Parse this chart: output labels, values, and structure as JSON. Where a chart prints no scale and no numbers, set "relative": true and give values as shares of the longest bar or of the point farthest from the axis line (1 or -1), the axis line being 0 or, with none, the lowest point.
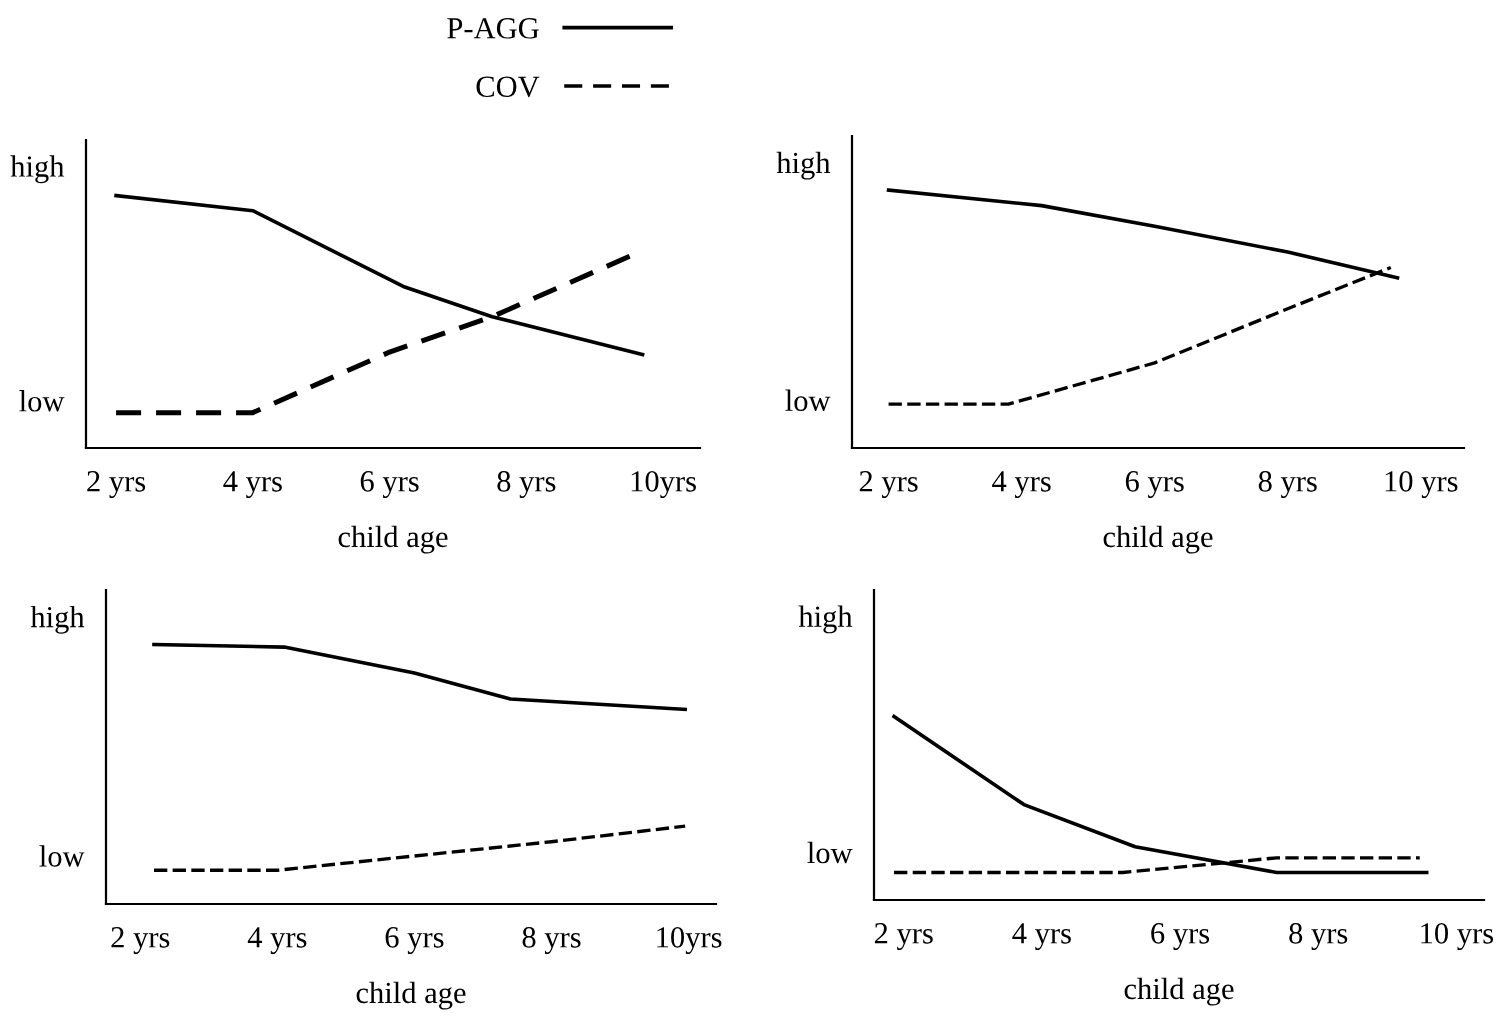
{
  "chart_data": [
    {
      "type": "line",
      "relative": true,
      "xlabel": "child age",
      "annotations": [
        "high",
        "low"
      ],
      "legend": "top",
      "grid": false,
      "marker": "none",
      "xlim": [
        1.56,
        10.54
      ],
      "xticks": [
        {
          "value": 2,
          "label": "2 yrs"
        },
        {
          "value": 4,
          "label": "4 yrs"
        },
        {
          "value": 6,
          "label": "6 yrs"
        },
        {
          "value": 8,
          "label": "8 yrs"
        },
        {
          "value": 10,
          "label": "10yrs"
        }
      ],
      "series": [
        {
          "name": "P-AGG",
          "color": "#000000",
          "line_style": "solid",
          "x": [
            2,
            4,
            6.2,
            7.5,
            9.7
          ],
          "values": [
            1,
            0.94,
            0.64,
            0.52,
            0.37
          ]
        },
        {
          "name": "COV",
          "color": "#000000",
          "line_style": "dashed",
          "x": [
            2,
            4,
            6,
            7.5,
            9.6
          ],
          "values": [
            0.14,
            0.14,
            0.38,
            0.52,
            0.77
          ]
        }
      ]
    },
    {
      "type": "line",
      "relative": true,
      "xlabel": "child age",
      "annotations": [
        "high",
        "low"
      ],
      "grid": false,
      "marker": "none",
      "xlim": [
        1.45,
        10.65
      ],
      "xticks": [
        {
          "value": 2,
          "label": "2 yrs"
        },
        {
          "value": 4,
          "label": "4 yrs"
        },
        {
          "value": 6,
          "label": "6 yrs"
        },
        {
          "value": 8,
          "label": "8 yrs"
        },
        {
          "value": 10,
          "label": "10 yrs"
        }
      ],
      "series": [
        {
          "color": "#000000",
          "line_style": "solid",
          "x": [
            2,
            4.3,
            6,
            8,
            9.65
          ],
          "values": [
            1,
            0.94,
            0.86,
            0.76,
            0.66
          ]
        },
        {
          "color": "#000000",
          "line_style": "dashed",
          "x": [
            2,
            3.8,
            6,
            8,
            9.55
          ],
          "values": [
            0.17,
            0.17,
            0.33,
            0.54,
            0.7
          ]
        }
      ]
    },
    {
      "type": "line",
      "relative": true,
      "xlabel": "child age",
      "annotations": [
        "high",
        "low"
      ],
      "grid": false,
      "marker": "none",
      "xlim": [
        1.5,
        10.4
      ],
      "xticks": [
        {
          "value": 2,
          "label": "2 yrs"
        },
        {
          "value": 4,
          "label": "4 yrs"
        },
        {
          "value": 6,
          "label": "6 yrs"
        },
        {
          "value": 8,
          "label": "8 yrs"
        },
        {
          "value": 10,
          "label": "10yrs"
        }
      ],
      "series": [
        {
          "color": "#000000",
          "line_style": "solid",
          "x": [
            2.2,
            4.1,
            6,
            7.4,
            9.95
          ],
          "values": [
            1,
            0.99,
            0.89,
            0.79,
            0.75
          ]
        },
        {
          "color": "#000000",
          "line_style": "dashed",
          "x": [
            2.2,
            4,
            8,
            9.95
          ],
          "values": [
            0.13,
            0.13,
            0.24,
            0.3
          ]
        }
      ]
    },
    {
      "type": "line",
      "relative": true,
      "xlabel": "child age",
      "annotations": [
        "high",
        "low"
      ],
      "grid": false,
      "marker": "none",
      "xlim": [
        1.57,
        10.4
      ],
      "xticks": [
        {
          "value": 2,
          "label": "2 yrs"
        },
        {
          "value": 4,
          "label": "4 yrs"
        },
        {
          "value": 6,
          "label": "6 yrs"
        },
        {
          "value": 8,
          "label": "8 yrs"
        },
        {
          "value": 10,
          "label": "10 yrs"
        }
      ],
      "series": [
        {
          "color": "#000000",
          "line_style": "solid",
          "x": [
            1.86,
            3.74,
            5.35,
            7.4,
            9.57
          ],
          "values": [
            1,
            0.52,
            0.29,
            0.15,
            0.15
          ]
        },
        {
          "color": "#000000",
          "line_style": "dashed",
          "x": [
            1.86,
            5.17,
            7.4,
            9.47
          ],
          "values": [
            0.15,
            0.15,
            0.23,
            0.23
          ]
        }
      ]
    }
  ]
}
